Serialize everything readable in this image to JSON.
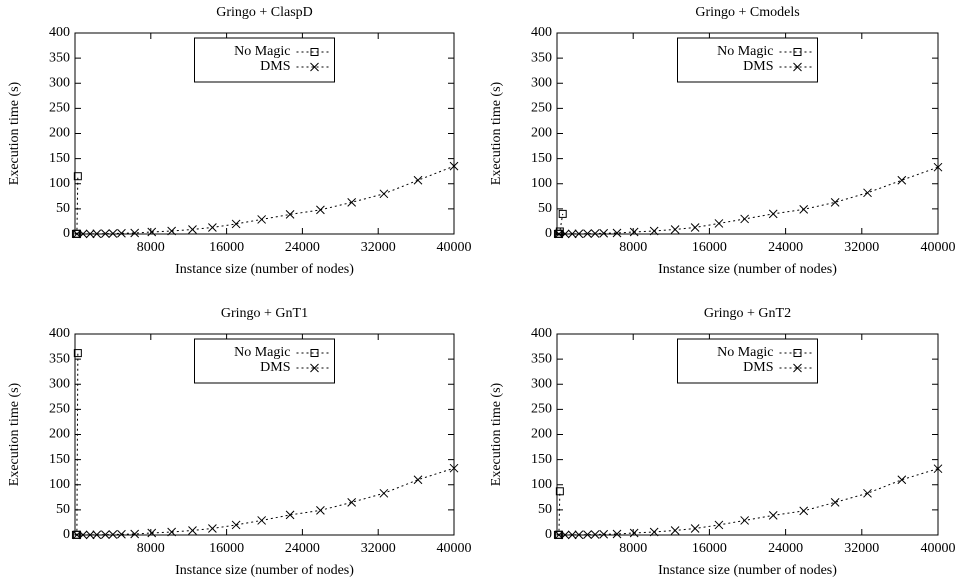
{
  "chart_data": [
    {
      "type": "line",
      "title": "Gringo + ClaspD",
      "xlabel": "Instance size (number of nodes)",
      "ylabel": "Execution time (s)",
      "xlim": [
        0,
        40000
      ],
      "xticks": [
        8000,
        16000,
        24000,
        32000,
        40000
      ],
      "ylim": [
        0,
        400
      ],
      "yticks": [
        0,
        50,
        100,
        150,
        200,
        250,
        300,
        350,
        400
      ],
      "legend": "top-center",
      "line_style": "dotted",
      "series": [
        {
          "name": "No Magic",
          "color": "#000000",
          "marker": "square",
          "x": [
            100,
            200,
            300
          ],
          "values": [
            0.2,
            0.5,
            115
          ]
        },
        {
          "name": "DMS",
          "color": "#000000",
          "marker": "x",
          "x": [
            200,
            850,
            1600,
            2300,
            3200,
            4000,
            4900,
            6300,
            8100,
            10200,
            12400,
            14500,
            17000,
            19700,
            22700,
            25900,
            29200,
            32600,
            36200,
            40000
          ],
          "values": [
            0.1,
            0.2,
            0.3,
            0.5,
            0.7,
            1,
            1.5,
            2,
            4,
            6,
            9,
            13,
            20,
            29,
            39,
            48,
            63,
            80,
            107,
            135
          ]
        }
      ]
    },
    {
      "type": "line",
      "title": "Gringo + Cmodels",
      "xlabel": "Instance size (number of nodes)",
      "ylabel": "Execution time (s)",
      "xlim": [
        0,
        40000
      ],
      "xticks": [
        8000,
        16000,
        24000,
        32000,
        40000
      ],
      "ylim": [
        0,
        400
      ],
      "yticks": [
        0,
        50,
        100,
        150,
        200,
        250,
        300,
        350,
        400
      ],
      "legend": "top-center",
      "line_style": "dotted",
      "series": [
        {
          "name": "No Magic",
          "color": "#000000",
          "marker": "square",
          "x": [
            100,
            200,
            300,
            600
          ],
          "values": [
            0.2,
            0.5,
            5,
            40
          ]
        },
        {
          "name": "DMS",
          "color": "#000000",
          "marker": "x",
          "x": [
            200,
            850,
            1600,
            2300,
            3200,
            4000,
            4900,
            6300,
            8100,
            10200,
            12400,
            14500,
            17000,
            19700,
            22700,
            25900,
            29200,
            32600,
            36200,
            40000
          ],
          "values": [
            0.1,
            0.2,
            0.3,
            0.5,
            0.7,
            1,
            1.5,
            2,
            4,
            6,
            9,
            13,
            21,
            30,
            40,
            49,
            63,
            82,
            107,
            133
          ]
        }
      ]
    },
    {
      "type": "line",
      "title": "Gringo + GnT1",
      "xlabel": "Instance size (number of nodes)",
      "ylabel": "Execution time (s)",
      "xlim": [
        0,
        40000
      ],
      "xticks": [
        8000,
        16000,
        24000,
        32000,
        40000
      ],
      "ylim": [
        0,
        400
      ],
      "yticks": [
        0,
        50,
        100,
        150,
        200,
        250,
        300,
        350,
        400
      ],
      "legend": "top-center",
      "line_style": "dotted",
      "series": [
        {
          "name": "No Magic",
          "color": "#000000",
          "marker": "square",
          "x": [
            100,
            200,
            300
          ],
          "values": [
            0.2,
            0.5,
            362
          ]
        },
        {
          "name": "DMS",
          "color": "#000000",
          "marker": "x",
          "x": [
            200,
            850,
            1600,
            2300,
            3200,
            4000,
            4900,
            6300,
            8100,
            10200,
            12400,
            14500,
            17000,
            19700,
            22700,
            25900,
            29200,
            32600,
            36200,
            40000
          ],
          "values": [
            0.1,
            0.2,
            0.3,
            0.5,
            0.7,
            1,
            1.5,
            2,
            4,
            6,
            9,
            13,
            20,
            29,
            40,
            49,
            65,
            83,
            110,
            133
          ]
        }
      ]
    },
    {
      "type": "line",
      "title": "Gringo + GnT2",
      "xlabel": "Instance size (number of nodes)",
      "ylabel": "Execution time (s)",
      "xlim": [
        0,
        40000
      ],
      "xticks": [
        8000,
        16000,
        24000,
        32000,
        40000
      ],
      "ylim": [
        0,
        400
      ],
      "yticks": [
        0,
        50,
        100,
        150,
        200,
        250,
        300,
        350,
        400
      ],
      "legend": "top-center",
      "line_style": "dotted",
      "series": [
        {
          "name": "No Magic",
          "color": "#000000",
          "marker": "square",
          "x": [
            100,
            200,
            300
          ],
          "values": [
            0.2,
            0.5,
            87
          ]
        },
        {
          "name": "DMS",
          "color": "#000000",
          "marker": "x",
          "x": [
            200,
            850,
            1600,
            2300,
            3200,
            4000,
            4900,
            6300,
            8100,
            10200,
            12400,
            14500,
            17000,
            19700,
            22700,
            25900,
            29200,
            32600,
            36200,
            40000
          ],
          "values": [
            0.1,
            0.2,
            0.3,
            0.5,
            0.7,
            1,
            1.5,
            2,
            4,
            6,
            9,
            13,
            20,
            29,
            39,
            48,
            65,
            83,
            110,
            132
          ]
        }
      ]
    }
  ]
}
